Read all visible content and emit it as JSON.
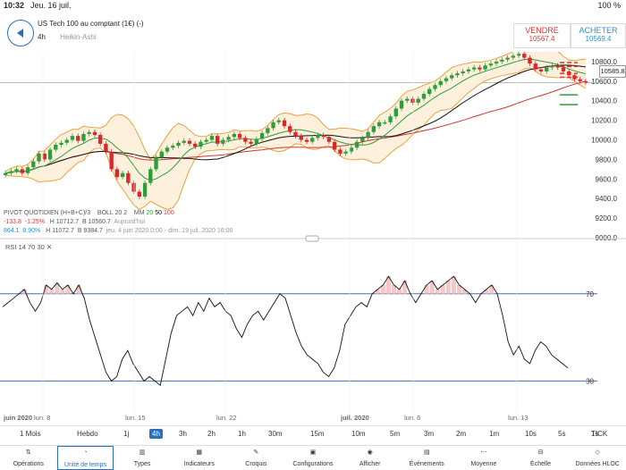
{
  "status": {
    "time": "10:32",
    "date": "Jeu. 16 juil.",
    "battery": "100 %"
  },
  "instrument": {
    "name": "US Tech 100 au comptant (1€) (-)",
    "timeframe": "4h",
    "chart_style": "Heikin-Ashi"
  },
  "quotes": {
    "sell_label": "VENDRE",
    "sell_price": "10567.4",
    "buy_label": "ACHETER",
    "buy_price": "10569.4",
    "current_tag": "10585.8"
  },
  "legend": {
    "pivot": "PIVOT  QUOTIDIEN  (H+B+C)/3",
    "boll": "BOLL  20  2",
    "mm_label": "MM",
    "mm_20": "20",
    "mm_50": "50",
    "mm_100": "100",
    "change_abs": "-133.8",
    "change_pct": "-1.25%",
    "h1": "H 10712.7",
    "b1": "B 10560.7",
    "day": "Aujourd'hui",
    "range_abs": "864.1",
    "range_pct": "8.90%",
    "h2": "H 11072.7",
    "b2": "B 9384.7",
    "period": "jeu. 4 juin 2020 0:00 - dim. 19 juil. 2020 16:00"
  },
  "rsi": {
    "label": "RSI  14  70  30",
    "upper": "70",
    "lower": "30"
  },
  "timeframes": [
    "1 Mois",
    "Hebdo",
    "1j",
    "4h",
    "3h",
    "2h",
    "1h",
    "30m",
    "15m",
    "10m",
    "5m",
    "3m",
    "2m",
    "1m",
    "10s",
    "5s",
    "1s",
    "TICK"
  ],
  "selected_timeframe": "4h",
  "bottom_nav": [
    "Opérations",
    "Unité de temps",
    "Types",
    "Indicateurs",
    "Croquis",
    "Configurations",
    "Afficher",
    "Événements",
    "Moyenne",
    "Échelle",
    "Données HLOC"
  ],
  "active_nav": "Unité de temps",
  "colors": {
    "up": "#2e9e3a",
    "down": "#d42a2a",
    "accent": "#2b6ebf",
    "bollinger": "#e8a23a",
    "mm20": "#2e9e3a",
    "mm50": "#111111",
    "mm100": "#d33333"
  },
  "chart_data": {
    "type": "candlestick",
    "y_ticks": [
      "10800.0",
      "10600.0",
      "10400.0",
      "10200.0",
      "10000.0",
      "9800.0",
      "9600.0",
      "9400.0",
      "9200.0",
      "9000.0"
    ],
    "ylim": [
      9000,
      10900
    ],
    "x_ticks": [
      "juin 2020",
      "lun. 8",
      "lun. 15",
      "lun. 22",
      "juil. 2020",
      "lun. 6",
      "lun. 13"
    ],
    "closes": [
      9660,
      9680,
      9700,
      9660,
      9720,
      9780,
      9860,
      9800,
      9900,
      9950,
      9970,
      10000,
      10040,
      9990,
      10060,
      10080,
      10050,
      9960,
      9880,
      9700,
      9620,
      9660,
      9560,
      9470,
      9420,
      9560,
      9700,
      9820,
      9880,
      9920,
      9940,
      9970,
      9990,
      9960,
      9930,
      9980,
      10000,
      10040,
      9960,
      10000,
      10030,
      10060,
      10020,
      9980,
      9960,
      10010,
      10070,
      10120,
      10180,
      10200,
      10140,
      10080,
      10040,
      10000,
      9980,
      10020,
      10050,
      10030,
      9980,
      9900,
      9860,
      9880,
      9920,
      9980,
      10020,
      10080,
      10140,
      10180,
      10180,
      10240,
      10320,
      10400,
      10420,
      10380,
      10420,
      10470,
      10520,
      10560,
      10600,
      10630,
      10660,
      10680,
      10700,
      10720,
      10740,
      10720,
      10760,
      10780,
      10800,
      10820,
      10840,
      10860,
      10880,
      10840,
      10780,
      10720,
      10700,
      10740,
      10760,
      10740,
      10700,
      10660,
      10620,
      10600,
      10585
    ],
    "rsi_values": [
      64,
      66,
      68,
      70,
      72,
      66,
      62,
      66,
      74,
      72,
      75,
      72,
      74,
      70,
      74,
      68,
      58,
      50,
      42,
      34,
      30,
      32,
      40,
      44,
      38,
      34,
      30,
      32,
      30,
      28,
      40,
      52,
      60,
      62,
      64,
      60,
      66,
      62,
      68,
      64,
      66,
      62,
      60,
      54,
      50,
      56,
      60,
      62,
      58,
      62,
      66,
      70,
      68,
      60,
      52,
      46,
      42,
      40,
      38,
      34,
      32,
      36,
      44,
      56,
      60,
      64,
      66,
      64,
      70,
      72,
      74,
      78,
      74,
      72,
      76,
      70,
      66,
      70,
      74,
      76,
      72,
      74,
      76,
      78,
      74,
      72,
      70,
      66,
      70,
      72,
      74,
      70,
      60,
      48,
      42,
      46,
      40,
      38,
      44,
      48,
      46,
      42,
      40,
      38,
      36
    ],
    "rsi_levels": [
      70,
      30
    ]
  }
}
